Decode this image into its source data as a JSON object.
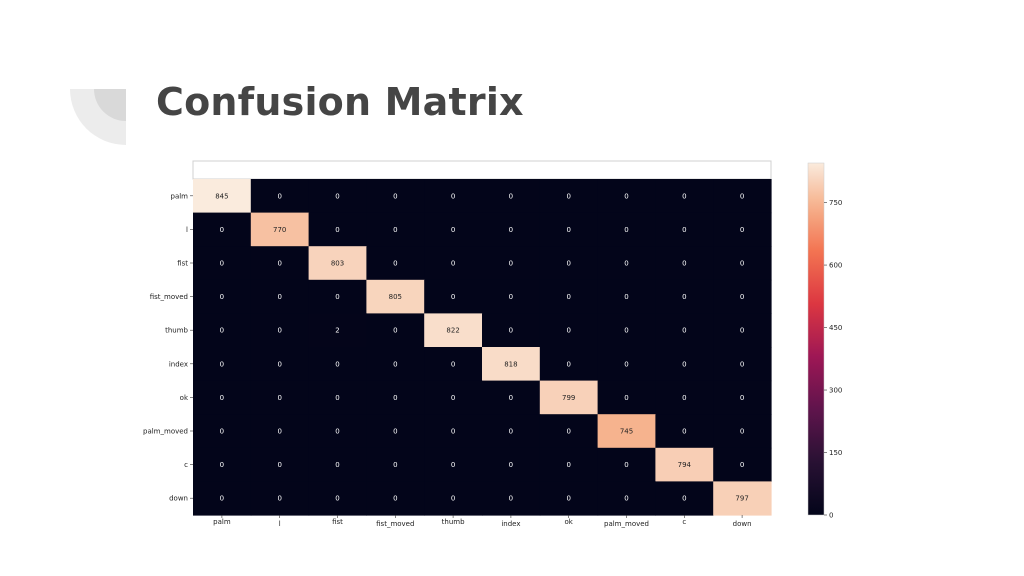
{
  "slide": {
    "title": "Confusion Matrix"
  },
  "chart_data": {
    "type": "heatmap",
    "title": "",
    "xlabel": "",
    "ylabel": "",
    "row_labels": [
      "palm",
      "l",
      "fist",
      "fist_moved",
      "thumb",
      "index",
      "ok",
      "palm_moved",
      "c",
      "down"
    ],
    "col_labels": [
      "palm",
      "l",
      "fist",
      "fist_moved",
      "thumb",
      "index",
      "ok",
      "palm_moved",
      "c",
      "down"
    ],
    "values": [
      [
        845,
        0,
        0,
        0,
        0,
        0,
        0,
        0,
        0,
        0
      ],
      [
        0,
        770,
        0,
        0,
        0,
        0,
        0,
        0,
        0,
        0
      ],
      [
        0,
        0,
        803,
        0,
        0,
        0,
        0,
        0,
        0,
        0
      ],
      [
        0,
        0,
        0,
        805,
        0,
        0,
        0,
        0,
        0,
        0
      ],
      [
        0,
        0,
        2,
        0,
        822,
        0,
        0,
        0,
        0,
        0
      ],
      [
        0,
        0,
        0,
        0,
        0,
        818,
        0,
        0,
        0,
        0
      ],
      [
        0,
        0,
        0,
        0,
        0,
        0,
        799,
        0,
        0,
        0
      ],
      [
        0,
        0,
        0,
        0,
        0,
        0,
        0,
        745,
        0,
        0
      ],
      [
        0,
        0,
        0,
        0,
        0,
        0,
        0,
        0,
        794,
        0
      ],
      [
        0,
        0,
        0,
        0,
        0,
        0,
        0,
        0,
        0,
        797
      ]
    ],
    "colorbar": {
      "ticks": [
        0,
        150,
        300,
        450,
        600,
        750
      ],
      "range": [
        0,
        845
      ],
      "colormap": "rocket"
    },
    "colors": {
      "low": "#03051a",
      "high": "#faebdd",
      "annotation_on_dark": "#ffffff",
      "annotation_on_light": "#222222"
    }
  }
}
